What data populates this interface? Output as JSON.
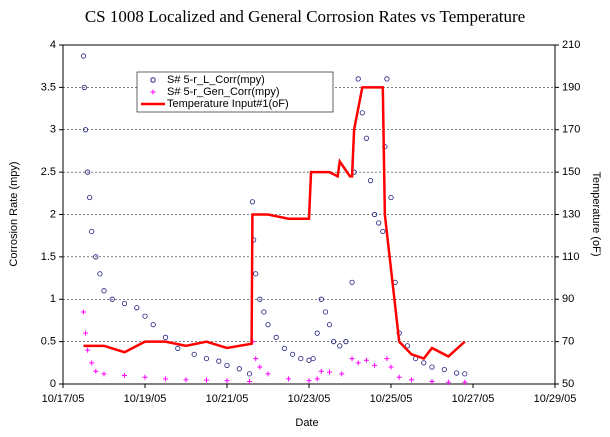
{
  "chart_data": {
    "type": "line",
    "title": "CS  1008 Localized and General Corrosion Rates vs Temperature",
    "x_label": "Date",
    "y_label": "Corrosion Rate (mpy)",
    "y2_label": "Temperature (oF)",
    "xlim": [
      17,
      29
    ],
    "xticks": [
      {
        "value": 17,
        "label": "10/17/05"
      },
      {
        "value": 19,
        "label": "10/19/05"
      },
      {
        "value": 21,
        "label": "10/21/05"
      },
      {
        "value": 23,
        "label": "10/23/05"
      },
      {
        "value": 25,
        "label": "10/25/05"
      },
      {
        "value": 27,
        "label": "10/27/05"
      },
      {
        "value": 29,
        "label": "10/29/05"
      }
    ],
    "ylim": [
      0,
      4
    ],
    "yticks": [
      0,
      0.5,
      1,
      1.5,
      2,
      2.5,
      3,
      3.5,
      4
    ],
    "y2lim": [
      50,
      210
    ],
    "y2ticks": [
      50,
      70,
      90,
      110,
      130,
      150,
      170,
      190,
      210
    ],
    "grid": true,
    "series": [
      {
        "name": "S# 5-r_L_Corr(mpy)",
        "color": "#1c1c80",
        "marker": "circle",
        "x": [
          17.5,
          17.52,
          17.55,
          17.6,
          17.65,
          17.7,
          17.8,
          17.9,
          18.0,
          18.2,
          18.5,
          18.8,
          19.0,
          19.2,
          19.5,
          19.8,
          20.2,
          20.5,
          20.8,
          21.0,
          21.3,
          21.55,
          21.62,
          21.65,
          21.7,
          21.8,
          21.9,
          22.0,
          22.2,
          22.4,
          22.6,
          22.8,
          23.0,
          23.1,
          23.2,
          23.3,
          23.4,
          23.5,
          23.6,
          23.75,
          23.9,
          24.05,
          24.1,
          24.2,
          24.3,
          24.4,
          24.5,
          24.6,
          24.7,
          24.8,
          24.85,
          24.9,
          25.0,
          25.1,
          25.2,
          25.4,
          25.6,
          25.8,
          26.0,
          26.3,
          26.6,
          26.8
        ],
        "values": [
          3.87,
          3.5,
          3.0,
          2.5,
          2.2,
          1.8,
          1.5,
          1.3,
          1.1,
          1.0,
          0.95,
          0.9,
          0.8,
          0.7,
          0.55,
          0.42,
          0.35,
          0.3,
          0.27,
          0.22,
          0.18,
          0.12,
          2.15,
          1.7,
          1.3,
          1.0,
          0.85,
          0.7,
          0.55,
          0.42,
          0.35,
          0.3,
          0.28,
          0.3,
          0.6,
          1.0,
          0.85,
          0.7,
          0.5,
          0.45,
          0.5,
          1.2,
          2.5,
          3.6,
          3.2,
          2.9,
          2.4,
          2.0,
          1.9,
          1.8,
          2.8,
          3.6,
          2.2,
          1.2,
          0.6,
          0.45,
          0.3,
          0.25,
          0.2,
          0.17,
          0.13,
          0.12
        ]
      },
      {
        "name": "S# 5-r_Gen_Corr(mpy)",
        "color": "#ff00ff",
        "marker": "plus",
        "x": [
          17.5,
          17.55,
          17.6,
          17.7,
          17.8,
          18.0,
          18.5,
          19.0,
          19.5,
          20.0,
          20.5,
          21.0,
          21.55,
          21.63,
          21.7,
          21.8,
          22.0,
          22.5,
          23.0,
          23.2,
          23.3,
          23.5,
          23.8,
          24.05,
          24.2,
          24.4,
          24.6,
          24.9,
          25.0,
          25.2,
          25.5,
          26.0,
          26.4,
          26.8
        ],
        "values": [
          0.85,
          0.6,
          0.4,
          0.25,
          0.15,
          0.12,
          0.1,
          0.08,
          0.06,
          0.05,
          0.045,
          0.04,
          0.03,
          0.5,
          0.3,
          0.2,
          0.12,
          0.06,
          0.04,
          0.06,
          0.15,
          0.14,
          0.12,
          0.3,
          0.25,
          0.28,
          0.22,
          0.3,
          0.2,
          0.08,
          0.05,
          0.03,
          0.02,
          0.02
        ]
      },
      {
        "name": "Temperature Input#1(oF)",
        "color": "#ff0000",
        "axis": "y2",
        "x": [
          17.5,
          18.0,
          18.5,
          19.0,
          19.5,
          20.0,
          20.5,
          21.0,
          21.6,
          21.62,
          22.0,
          22.5,
          23.0,
          23.05,
          23.5,
          23.7,
          23.75,
          24.0,
          24.05,
          24.1,
          24.3,
          24.6,
          24.8,
          24.85,
          25.2,
          25.5,
          25.8,
          26.0,
          26.4,
          26.8
        ],
        "values": [
          68,
          68,
          65,
          70,
          70,
          68,
          70,
          67,
          69,
          130,
          130,
          128,
          128,
          150,
          150,
          148,
          155,
          148,
          148,
          170,
          190,
          190,
          190,
          130,
          70,
          64,
          62,
          67,
          63,
          70
        ]
      }
    ]
  }
}
